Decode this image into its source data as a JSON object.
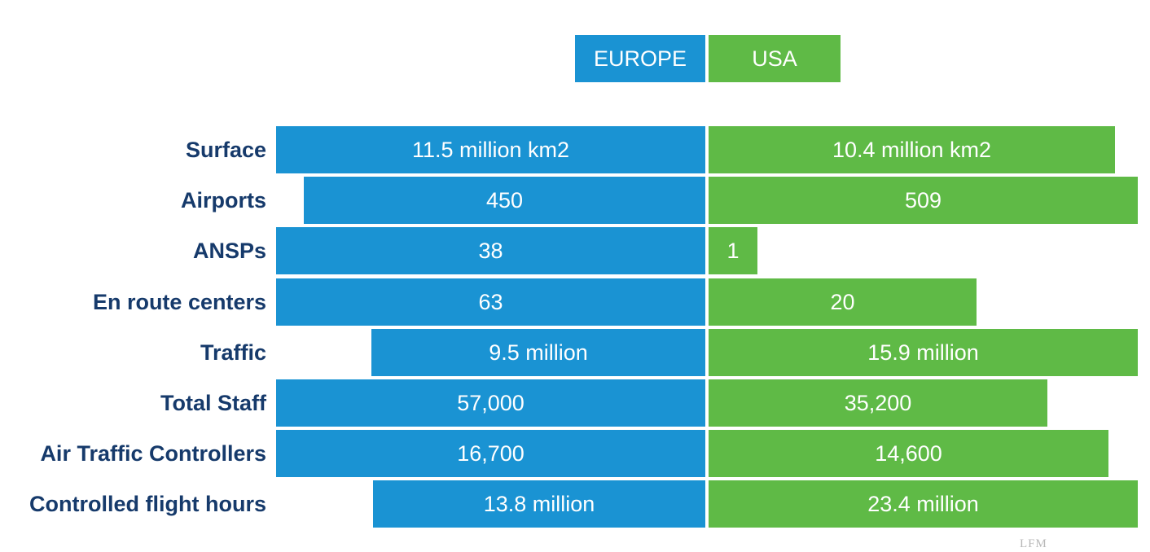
{
  "chart_data": {
    "type": "bar",
    "orientation": "horizontal-diverging",
    "categories": [
      "Surface",
      "Airports",
      "ANSPs",
      "En route centers",
      "Traffic",
      "Total Staff",
      "Air Traffic Controllers",
      "Controlled flight hours"
    ],
    "series": [
      {
        "name": "EUROPE",
        "color": "#1a93d3",
        "values": [
          11.5,
          450,
          38,
          63,
          9.5,
          57000,
          16700,
          13.8
        ],
        "labels": [
          "11.5 million km2",
          "450",
          "38",
          "63",
          "9.5 million",
          "57,000",
          "16,700",
          "13.8 million"
        ]
      },
      {
        "name": "USA",
        "color": "#5fba46",
        "values": [
          10.4,
          509,
          1,
          20,
          15.9,
          35200,
          14600,
          23.4
        ],
        "labels": [
          "10.4 million km2",
          "509",
          "1",
          "20",
          "15.9 million",
          "35,200",
          "14,600",
          "23.4 million"
        ]
      }
    ],
    "legend": {
      "position": "top",
      "entries": [
        "EUROPE",
        "USA"
      ]
    },
    "grid": false
  },
  "watermark": "LFM"
}
